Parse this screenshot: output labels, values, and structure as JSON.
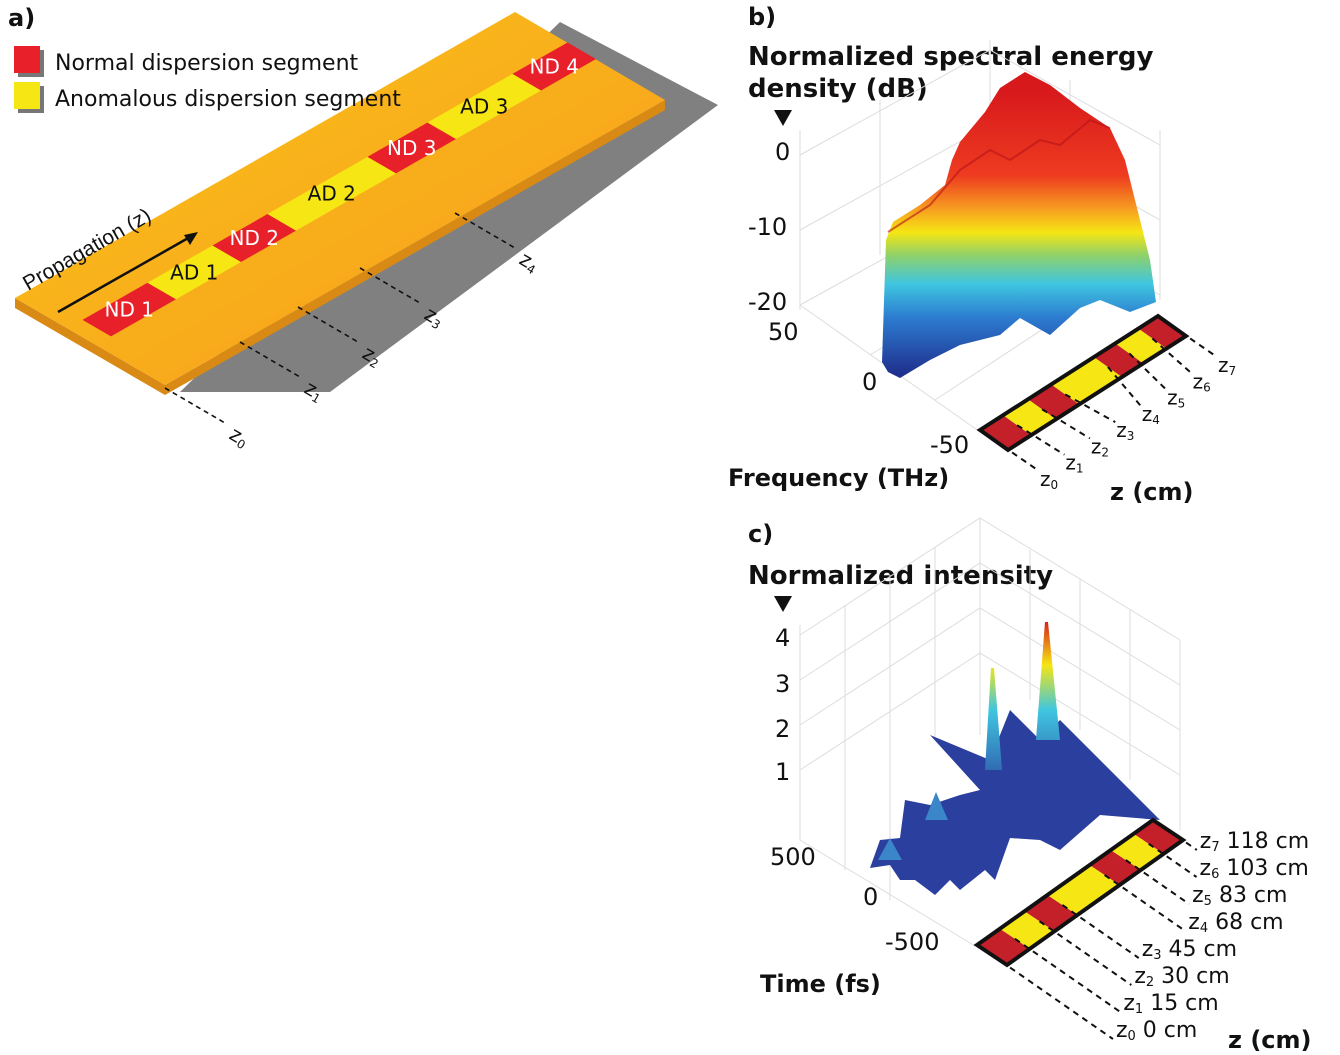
{
  "panel_a": {
    "label": "a)",
    "legend": [
      {
        "text": "Normal dispersion segment",
        "color": "#e8202a"
      },
      {
        "text": "Anomalous dispersion segment",
        "color": "#f5e614"
      }
    ],
    "propagation_label": "Propagation (z)",
    "segments": [
      {
        "text": "ND 1",
        "type": "normal"
      },
      {
        "text": "AD 1",
        "type": "anomalous"
      },
      {
        "text": "ND 2",
        "type": "normal"
      },
      {
        "text": "AD 2",
        "type": "anomalous"
      },
      {
        "text": "ND 3",
        "type": "normal"
      },
      {
        "text": "AD 3",
        "type": "anomalous"
      },
      {
        "text": "ND 4",
        "type": "normal"
      }
    ],
    "z_markers": [
      "z0",
      "z1",
      "z2",
      "z3",
      "z4"
    ]
  },
  "panel_b": {
    "label": "b)",
    "title_line1": "Normalized spectral energy",
    "title_line2": "density (dB)",
    "z_ticks": [
      "0",
      "-10",
      "-20"
    ],
    "freq_ticks": [
      "50",
      "0",
      "-50"
    ],
    "freq_label": "Frequency (THz)",
    "z_axis_label": "z (cm)",
    "z_markers": [
      "z0",
      "z1",
      "z2",
      "z3",
      "z4",
      "z5",
      "z6",
      "z7"
    ],
    "colormap": [
      "#d7191c",
      "#f46d43",
      "#fdae61",
      "#f5e614",
      "#a6d96a",
      "#3fc6e0",
      "#2c7bb6",
      "#1f3c99"
    ]
  },
  "panel_c": {
    "label": "c)",
    "title": "Normalized intensity",
    "z_ticks": [
      "4",
      "3",
      "2",
      "1"
    ],
    "time_ticks": [
      "500",
      "0",
      "-500"
    ],
    "time_label": "Time (fs)",
    "z_axis_label": "z (cm)",
    "z_markers": [
      {
        "name": "z0",
        "value": "0 cm"
      },
      {
        "name": "z1",
        "value": "15 cm"
      },
      {
        "name": "z2",
        "value": "30 cm"
      },
      {
        "name": "z3",
        "value": "45 cm"
      },
      {
        "name": "z4",
        "value": "68 cm"
      },
      {
        "name": "z5",
        "value": "83 cm"
      },
      {
        "name": "z6",
        "value": "103 cm"
      },
      {
        "name": "z7",
        "value": "118 cm"
      }
    ]
  },
  "colors": {
    "normal": "#c4202a",
    "anomalous": "#f5e614",
    "slab": "#f7a81b",
    "shadow": "#808080",
    "surface_blue": "#2a3f9e"
  }
}
